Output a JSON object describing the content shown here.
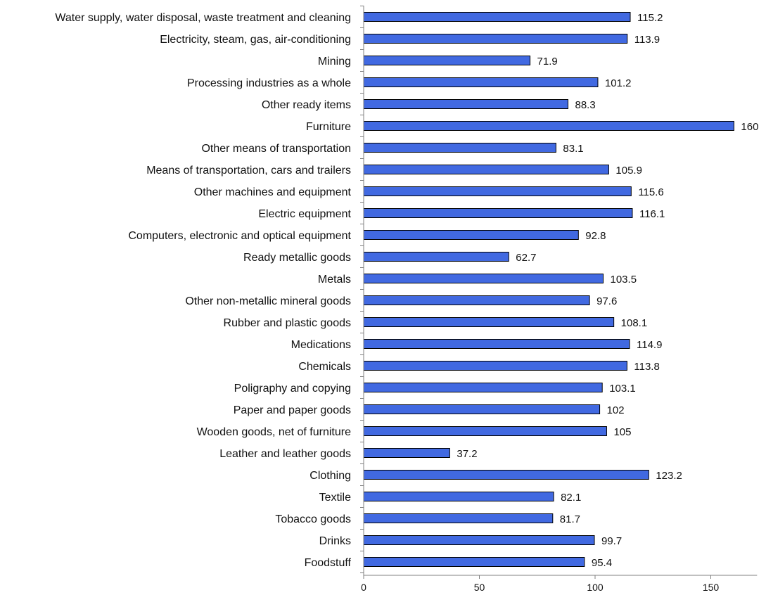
{
  "chart_data": {
    "type": "bar",
    "orientation": "horizontal",
    "title": "",
    "xlabel": "",
    "ylabel": "",
    "xlim": [
      0,
      170
    ],
    "grid": false,
    "legend": "none",
    "bar_color": "#4169E1",
    "xticks": [
      0,
      50,
      100,
      150
    ],
    "categories": [
      "Water supply, water disposal, waste treatment and cleaning",
      "Electricity, steam, gas, air-conditioning",
      "Mining",
      "Processing industries as a whole",
      "Other ready items",
      "Furniture",
      "Other means of transportation",
      "Means of transportation, cars and trailers",
      "Other machines and equipment",
      "Electric equipment",
      "Computers, electronic and optical equipment",
      "Ready metallic goods",
      "Metals",
      "Other non-metallic mineral goods",
      "Rubber and plastic goods",
      "Medications",
      "Chemicals",
      "Poligraphy and copying",
      "Paper and paper goods",
      "Wooden goods, net of furniture",
      "Leather and leather goods",
      "Clothing",
      "Textile",
      "Tobacco goods",
      "Drinks",
      "Foodstuff"
    ],
    "values": [
      115.2,
      113.9,
      71.9,
      101.2,
      88.3,
      160,
      83.1,
      105.9,
      115.6,
      116.1,
      92.8,
      62.7,
      103.5,
      97.6,
      108.1,
      114.9,
      113.8,
      103.1,
      102,
      105,
      37.2,
      123.2,
      82.1,
      81.7,
      99.7,
      95.4
    ],
    "value_labels": [
      "115.2",
      "113.9",
      "71.9",
      "101.2",
      "88.3",
      "160",
      "83.1",
      "105.9",
      "115.6",
      "116.1",
      "92.8",
      "62.7",
      "103.5",
      "97.6",
      "108.1",
      "114.9",
      "113.8",
      "103.1",
      "102",
      "105",
      "37.2",
      "123.2",
      "82.1",
      "81.7",
      "99.7",
      "95.4"
    ]
  }
}
